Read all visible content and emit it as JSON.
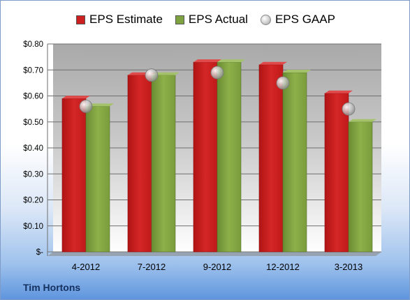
{
  "legend": [
    {
      "label": "EPS Estimate",
      "color": "#cc1f1f",
      "kind": "bar"
    },
    {
      "label": "EPS Actual",
      "color": "#7ea23f",
      "kind": "bar"
    },
    {
      "label": "EPS GAAP",
      "color": "#c0c0c0",
      "kind": "dot"
    }
  ],
  "footer": {
    "company": "Tim Hortons"
  },
  "chart_data": {
    "type": "bar",
    "categories": [
      "4-2012",
      "7-2012",
      "9-2012",
      "12-2012",
      "3-2013"
    ],
    "series": [
      {
        "name": "EPS Estimate",
        "kind": "bar",
        "color": "#cc1f1f",
        "values": [
          0.59,
          0.68,
          0.73,
          0.72,
          0.61
        ]
      },
      {
        "name": "EPS Actual",
        "kind": "bar",
        "color": "#7ea23f",
        "values": [
          0.56,
          0.68,
          0.73,
          0.69,
          0.5
        ]
      },
      {
        "name": "EPS GAAP",
        "kind": "marker",
        "color": "#c0c0c0",
        "values": [
          0.56,
          0.68,
          0.69,
          0.65,
          0.55
        ]
      }
    ],
    "ylim": [
      0,
      0.8
    ],
    "yticks": [
      0,
      0.1,
      0.2,
      0.3,
      0.4,
      0.5,
      0.6,
      0.7,
      0.8
    ],
    "ytick_labels": [
      "$-",
      "$0.10",
      "$0.20",
      "$0.30",
      "$0.40",
      "$0.50",
      "$0.60",
      "$0.70",
      "$0.80"
    ],
    "grid": true,
    "legend_position": "top"
  }
}
